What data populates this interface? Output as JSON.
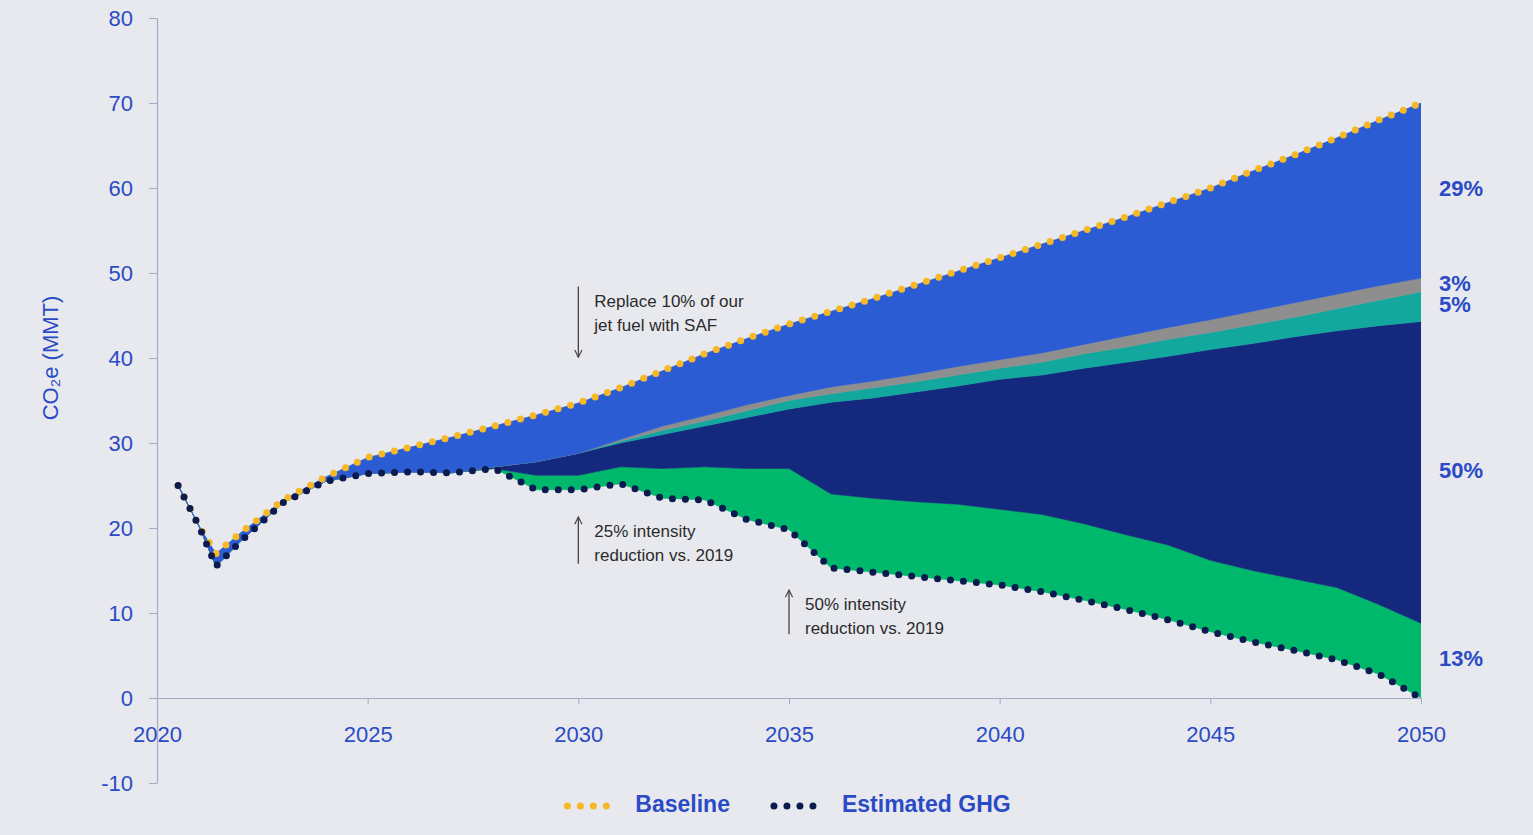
{
  "chart_data": {
    "type": "area",
    "stacked": true,
    "y_label": "CO₂e (MMT)",
    "legend": "bottom",
    "x": [
      2020.5,
      2021,
      2021.4,
      2022,
      2023,
      2024,
      2025,
      2026,
      2027,
      2028,
      2029,
      2030,
      2031,
      2032,
      2033,
      2034,
      2035,
      2036,
      2037,
      2038,
      2039,
      2040,
      2041,
      2042,
      2043,
      2044,
      2045,
      2046,
      2047,
      2048,
      2049,
      2050
    ],
    "xlim": [
      2020,
      2050
    ],
    "xticks": [
      2020,
      2025,
      2030,
      2035,
      2040,
      2045,
      2050
    ],
    "ylim": [
      -10,
      80
    ],
    "yticks": [
      -10,
      0,
      10,
      20,
      30,
      40,
      50,
      60,
      70,
      80
    ],
    "series": [
      {
        "name": "Baseline",
        "type": "line",
        "line_style": "dotted",
        "color": "#f7b825",
        "values": [
          25,
          20.2,
          17,
          19.5,
          23.3,
          26,
          28.3,
          29.5,
          30.7,
          32,
          33.3,
          34.7,
          36.5,
          38.5,
          40.5,
          42.3,
          44,
          45.5,
          47,
          48.6,
          50.2,
          51.8,
          53.4,
          55,
          56.6,
          58.3,
          60,
          62,
          63.9,
          65.9,
          68,
          70
        ]
      },
      {
        "name": "Estimated GHG",
        "type": "line",
        "line_style": "dotted",
        "color": "#0c1b4f",
        "values": [
          25,
          20.2,
          15.5,
          18.5,
          23,
          25.5,
          26.4,
          26.6,
          26.5,
          27,
          24.5,
          24.5,
          25.2,
          23.5,
          23.3,
          21,
          19.8,
          15.3,
          14.8,
          14.3,
          13.8,
          13.3,
          12.5,
          11.5,
          10.4,
          9.2,
          7.8,
          6.6,
          5.6,
          4.5,
          2.8,
          0
        ]
      },
      {
        "type": "area",
        "color": "#00b86b",
        "end_label": "13%",
        "values": [
          0,
          0,
          0,
          0,
          0,
          0,
          0,
          0,
          0,
          0,
          1.7,
          1.7,
          2.0,
          3.5,
          3.9,
          6.0,
          7.2,
          8.7,
          8.7,
          8.8,
          9.0,
          8.9,
          9.1,
          9.0,
          8.8,
          8.8,
          8.4,
          8.4,
          8.4,
          8.5,
          8.2,
          8.8
        ]
      },
      {
        "type": "area",
        "color": "#14297e",
        "end_label": "50%",
        "values": [
          0,
          0,
          0,
          0,
          0,
          0,
          0,
          0,
          0,
          0.2,
          1.6,
          2.6,
          2.8,
          4.0,
          4.8,
          6.0,
          7.0,
          10.8,
          11.8,
          12.9,
          13.9,
          15.3,
          16.4,
          18.3,
          20.3,
          22.2,
          24.8,
          26.7,
          28.5,
          30.2,
          32.8,
          35.5
        ]
      },
      {
        "type": "area",
        "color": "#12a89e",
        "end_label": "5%",
        "values": [
          0,
          0,
          0,
          0,
          0,
          0,
          0,
          0,
          0,
          0,
          0,
          0,
          0.2,
          0.5,
          0.6,
          0.8,
          1.0,
          1.0,
          1.2,
          1.2,
          1.3,
          1.3,
          1.5,
          1.7,
          1.8,
          2.0,
          2.0,
          2.2,
          2.3,
          2.6,
          3.0,
          3.5
        ]
      },
      {
        "type": "area",
        "color": "#8e8e8e",
        "end_label": "3%",
        "values": [
          0,
          0,
          0,
          0,
          0,
          0,
          0,
          0,
          0,
          0,
          0,
          0,
          0.2,
          0.5,
          0.6,
          0.7,
          0.6,
          0.8,
          0.8,
          0.9,
          1.0,
          1.0,
          1.1,
          1.1,
          1.3,
          1.4,
          1.5,
          1.6,
          1.7,
          1.7,
          1.7,
          1.6
        ]
      },
      {
        "type": "area",
        "color": "#2b5cd4",
        "end_label": "29%",
        "values": [
          0,
          0,
          1.5,
          1.0,
          0.3,
          0.5,
          1.9,
          2.9,
          4.2,
          4.8,
          5.5,
          5.9,
          6.1,
          6.5,
          7.3,
          7.8,
          8.4,
          8.9,
          9.7,
          10.5,
          11.2,
          12.0,
          12.8,
          13.4,
          14.0,
          14.7,
          15.5,
          16.5,
          17.4,
          18.4,
          19.5,
          20.6
        ]
      }
    ],
    "annotations": [
      {
        "text": [
          "Replace 10% of our",
          "jet fuel with SAF"
        ],
        "xy": [
          2030,
          40.1
        ],
        "xytext": [
          2030,
          48.4
        ]
      },
      {
        "text": [
          "25% intensity",
          "reduction vs. 2019"
        ],
        "xy": [
          2030,
          21.3
        ],
        "xytext": [
          2030,
          15.8
        ]
      },
      {
        "text": [
          "50% intensity",
          "reduction vs. 2019"
        ],
        "xy": [
          2035,
          12.7
        ],
        "xytext": [
          2035,
          7.5
        ]
      }
    ]
  }
}
